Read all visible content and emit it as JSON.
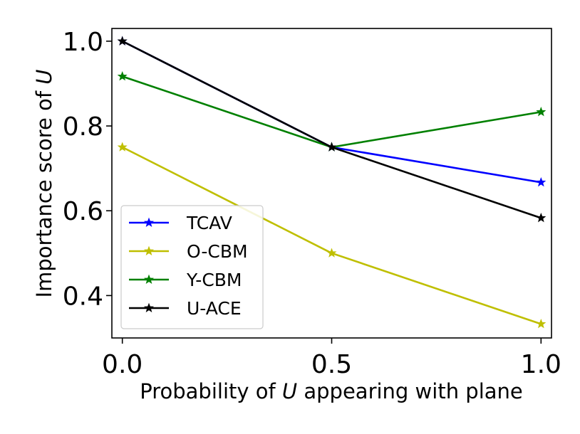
{
  "chart_data": {
    "type": "line",
    "title": "",
    "xlabel_prefix": "Probability of ",
    "xlabel_var": "U",
    "xlabel_suffix": " appearing with plane",
    "ylabel_prefix": "Importance score of ",
    "ylabel_var": "U",
    "x": [
      0.0,
      0.5,
      1.0
    ],
    "xlim": [
      -0.025,
      1.025
    ],
    "ylim": [
      0.3,
      1.03
    ],
    "xticks": [
      0.0,
      0.5,
      1.0
    ],
    "xtick_labels": [
      "0.0",
      "0.5",
      "1.0"
    ],
    "yticks": [
      0.4,
      0.6,
      0.8,
      1.0
    ],
    "ytick_labels": [
      "0.4",
      "0.6",
      "0.8",
      "1.0"
    ],
    "grid": false,
    "legend_position": "lower-left",
    "series": [
      {
        "name": "TCAV",
        "color": "#0000ff",
        "marker": "star",
        "values": [
          1.0,
          0.75,
          0.667
        ]
      },
      {
        "name": "O-CBM",
        "color": "#bfbf00",
        "marker": "star",
        "values": [
          0.75,
          0.5,
          0.333
        ]
      },
      {
        "name": "Y-CBM",
        "color": "#008000",
        "marker": "star",
        "values": [
          0.917,
          0.75,
          0.833
        ]
      },
      {
        "name": "U-ACE",
        "color": "#000000",
        "marker": "star",
        "values": [
          1.0,
          0.75,
          0.583
        ]
      }
    ]
  }
}
